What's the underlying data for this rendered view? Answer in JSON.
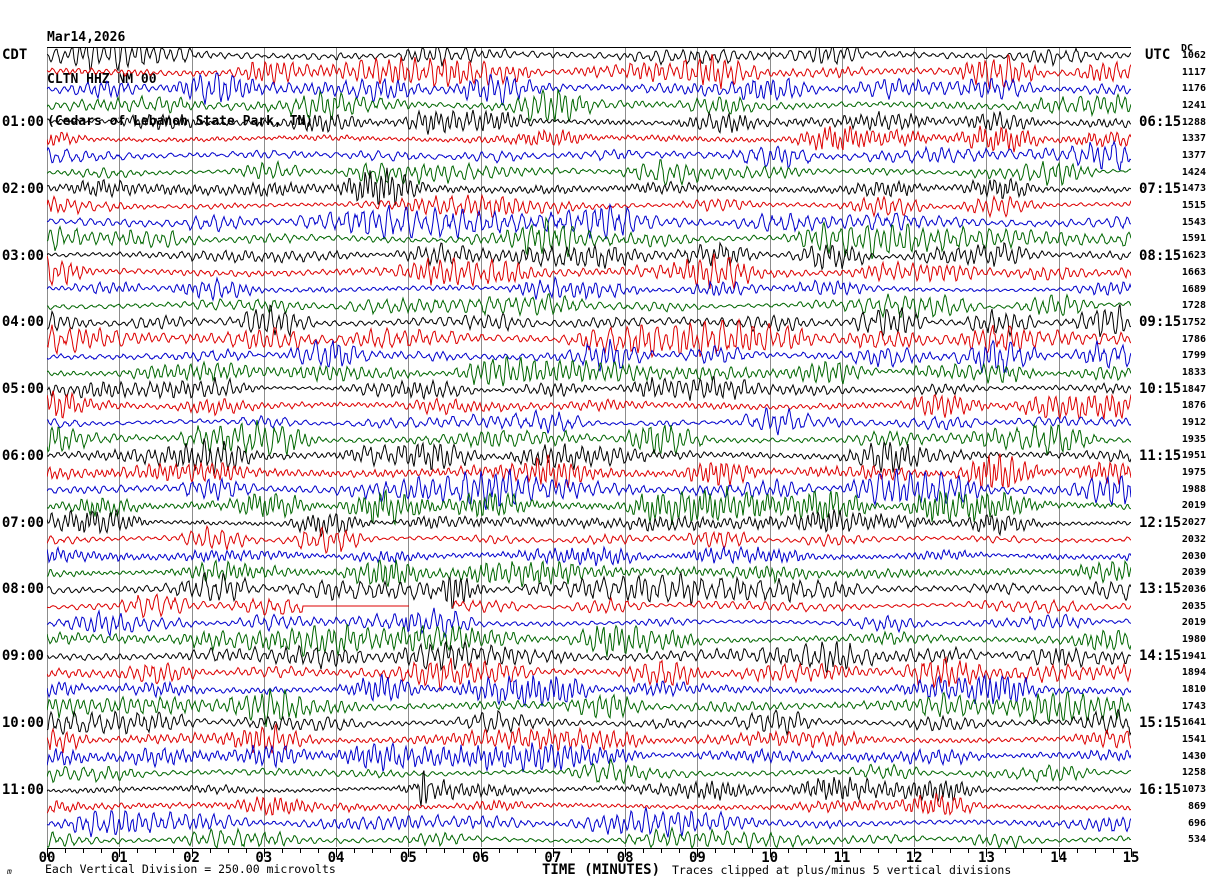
{
  "title": {
    "date": "Mar14,2026",
    "station": "CLTN HHZ NM 00",
    "location": "(Cedars of Lebanon State Park, TN)"
  },
  "axes": {
    "left_header": "CDT",
    "right_header": "UTC",
    "offset_header": "DC"
  },
  "footer": {
    "mark": "m",
    "left": "Each Vertical Division =  250.00 microvolts",
    "right": "Traces clipped at plus/minus 5 vertical divisions"
  },
  "chart_data": {
    "type": "line",
    "subtype": "helicorder-seismogram",
    "title": "Mar14,2026 CLTN HHZ NM 00 (Cedars of Lebanon State Park, TN)",
    "xlabel": "TIME (MINUTES)",
    "x_tick_labels": [
      "00",
      "01",
      "02",
      "03",
      "04",
      "05",
      "06",
      "07",
      "08",
      "09",
      "10",
      "11",
      "12",
      "13",
      "14",
      "15"
    ],
    "x_range_minutes": [
      0,
      15
    ],
    "minutes_per_row": 15,
    "rows": 48,
    "minor_ticks_per_minute": 4,
    "row_label_every_n_rows": 4,
    "first_labeled_row_index": 4,
    "left_time_labels_cdt": [
      "01:00",
      "02:00",
      "03:00",
      "04:00",
      "05:00",
      "06:00",
      "07:00",
      "08:00",
      "09:00",
      "10:00",
      "11:00"
    ],
    "right_time_labels_utc": [
      "06:15",
      "07:15",
      "08:15",
      "09:15",
      "10:15",
      "11:15",
      "12:15",
      "13:15",
      "14:15",
      "15:15",
      "16:15"
    ],
    "dc_offsets": [
      1062,
      1117,
      1176,
      1241,
      1288,
      1337,
      1377,
      1424,
      1473,
      1515,
      1543,
      1591,
      1623,
      1663,
      1689,
      1728,
      1752,
      1786,
      1799,
      1833,
      1847,
      1876,
      1912,
      1935,
      1951,
      1975,
      1988,
      2019,
      2027,
      2032,
      2030,
      2039,
      2036,
      2035,
      2019,
      1980,
      1941,
      1894,
      1810,
      1743,
      1641,
      1541,
      1430,
      1258,
      1073,
      869,
      696,
      534
    ],
    "trace_color_cycle": [
      "#000000",
      "#dd0000",
      "#0000cc",
      "#006600"
    ],
    "grid_color": "#8c8c8c",
    "microvolts_per_division": 250.0,
    "clip_divisions": 5,
    "events": {
      "flats": [
        {
          "row": 33,
          "start_min": 3.53,
          "end_min": 5.02
        }
      ],
      "gaps": [
        {
          "row": 33,
          "start_min": 5.02,
          "end_min": 5.6
        }
      ],
      "spikes": [
        {
          "row": 44,
          "min": 5.21,
          "amp": 27,
          "width": 3.5
        },
        {
          "row": 34,
          "min": 4.97,
          "amp": 13,
          "width": 2.5
        },
        {
          "row": 32,
          "min": 5.65,
          "amp": 13,
          "width": 14
        }
      ]
    },
    "waveform_note": "continuous microseism-like noise traces; per-sample values not recoverable from image"
  }
}
